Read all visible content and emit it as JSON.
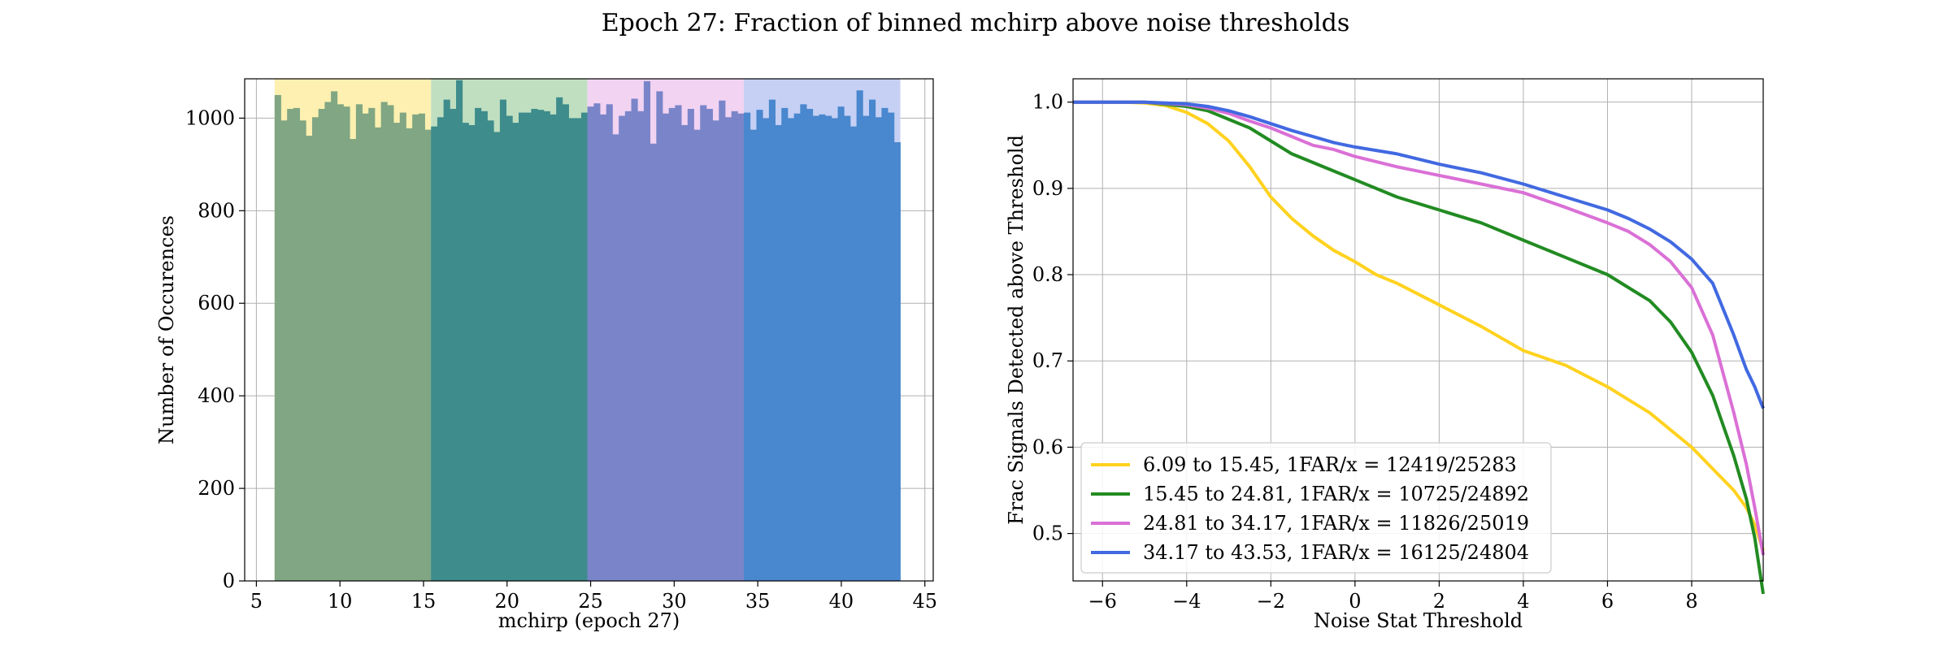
{
  "title": "Epoch 27: Fraction of binned mchirp above noise thresholds",
  "chart_data": [
    {
      "type": "bar",
      "subtype": "histogram",
      "xlabel": "mchirp (epoch 27)",
      "ylabel": "Number of Occurences",
      "xlim": [
        4.3,
        45.5
      ],
      "ylim": [
        0,
        1085
      ],
      "xticks": [
        5,
        10,
        15,
        20,
        25,
        30,
        35,
        40,
        45
      ],
      "yticks": [
        0,
        200,
        400,
        600,
        800,
        1000
      ],
      "grid": true,
      "bin_edges_range": [
        6.09,
        43.53
      ],
      "bin_count": 100,
      "counts": [
        1050,
        995,
        1020,
        1022,
        995,
        962,
        1002,
        1020,
        1035,
        1058,
        1030,
        1025,
        955,
        1030,
        1010,
        1022,
        980,
        1035,
        1028,
        990,
        1012,
        978,
        1008,
        1010,
        975,
        982,
        1002,
        1040,
        1020,
        1082,
        990,
        985,
        1022,
        1015,
        995,
        970,
        1040,
        1005,
        990,
        1012,
        1012,
        1020,
        1018,
        1015,
        1008,
        1045,
        1030,
        1000,
        1000,
        1012,
        1025,
        1032,
        1008,
        1030,
        965,
        1005,
        1015,
        1042,
        1015,
        1080,
        945,
        1058,
        1010,
        1022,
        1028,
        985,
        1020,
        975,
        1028,
        1020,
        995,
        1038,
        1002,
        1015,
        1010,
        1012,
        975,
        1018,
        1000,
        1040,
        985,
        1022,
        1000,
        1010,
        1030,
        1020,
        1005,
        1008,
        1005,
        1000,
        1025,
        1005,
        982,
        1060,
        1005,
        1040,
        1002,
        1022,
        1012,
        948
      ],
      "regions": [
        {
          "from": 6.09,
          "to": 15.45,
          "shade": "#fdf0b0",
          "bar": "#80a683"
        },
        {
          "from": 15.45,
          "to": 24.81,
          "shade": "#c0dfc0",
          "bar": "#3e8c8c"
        },
        {
          "from": 24.81,
          "to": 34.17,
          "shade": "#f2d3f2",
          "bar": "#7a85c9"
        },
        {
          "from": 34.17,
          "to": 43.53,
          "shade": "#c5d0f4",
          "bar": "#4987ce"
        }
      ]
    },
    {
      "type": "line",
      "xlabel": "Noise Stat Threshold",
      "ylabel": "Frac Signals Detected above Threshold",
      "xlim": [
        -6.7,
        9.7
      ],
      "ylim": [
        0.445,
        1.027
      ],
      "xticks": [
        -6,
        -4,
        -2,
        0,
        2,
        4,
        6,
        8
      ],
      "yticks": [
        0.5,
        0.6,
        0.7,
        0.8,
        0.9,
        1.0
      ],
      "grid": true,
      "legend_position": "lower-left",
      "series": [
        {
          "name": "6.09 to 15.45, 1FAR/x = 12419/25283",
          "color": "#ffd21f",
          "x": [
            -6.7,
            -5.5,
            -5,
            -4.5,
            -4,
            -3.5,
            -3,
            -2.5,
            -2,
            -1.5,
            -1,
            -0.5,
            0,
            0.5,
            1,
            2,
            3,
            4,
            5,
            6,
            7,
            8,
            8.5,
            9,
            9.3,
            9.5,
            9.7
          ],
          "y": [
            1.0,
            1.0,
            0.999,
            0.996,
            0.988,
            0.975,
            0.955,
            0.925,
            0.89,
            0.865,
            0.845,
            0.828,
            0.815,
            0.8,
            0.79,
            0.765,
            0.74,
            0.712,
            0.695,
            0.67,
            0.64,
            0.6,
            0.575,
            0.55,
            0.53,
            0.51,
            0.48
          ]
        },
        {
          "name": "15.45 to 24.81, 1FAR/x = 10725/24892",
          "color": "#228b22",
          "x": [
            -6.7,
            -5,
            -4,
            -3.5,
            -3,
            -2.5,
            -2,
            -1.5,
            -1,
            -0.5,
            0,
            1,
            2,
            3,
            4,
            5,
            6,
            6.5,
            7,
            7.5,
            8,
            8.5,
            9,
            9.3,
            9.5,
            9.7
          ],
          "y": [
            1.0,
            1.0,
            0.995,
            0.99,
            0.98,
            0.97,
            0.955,
            0.94,
            0.93,
            0.92,
            0.91,
            0.89,
            0.875,
            0.86,
            0.84,
            0.82,
            0.8,
            0.785,
            0.77,
            0.745,
            0.71,
            0.66,
            0.59,
            0.54,
            0.495,
            0.43
          ]
        },
        {
          "name": "24.81 to 34.17, 1FAR/x = 11826/25019",
          "color": "#da70d6",
          "x": [
            -6.7,
            -5,
            -4,
            -3.5,
            -3,
            -2.5,
            -2,
            -1.5,
            -1,
            -0.5,
            0,
            1,
            2,
            3,
            4,
            5,
            6,
            6.5,
            7,
            7.5,
            8,
            8.5,
            9,
            9.3,
            9.5,
            9.7
          ],
          "y": [
            1.0,
            1.0,
            0.997,
            0.993,
            0.987,
            0.978,
            0.97,
            0.96,
            0.95,
            0.945,
            0.937,
            0.925,
            0.915,
            0.905,
            0.895,
            0.878,
            0.86,
            0.85,
            0.835,
            0.815,
            0.785,
            0.73,
            0.64,
            0.58,
            0.53,
            0.475
          ]
        },
        {
          "name": "34.17 to 43.53, 1FAR/x = 16125/24804",
          "color": "#4169e1",
          "x": [
            -6.7,
            -5,
            -4,
            -3.5,
            -3,
            -2.5,
            -2,
            -1.5,
            -1,
            -0.5,
            0,
            1,
            2,
            3,
            4,
            5,
            6,
            6.5,
            7,
            7.5,
            8,
            8.5,
            9,
            9.3,
            9.5,
            9.7
          ],
          "y": [
            1.0,
            1.0,
            0.998,
            0.995,
            0.99,
            0.983,
            0.975,
            0.967,
            0.96,
            0.953,
            0.948,
            0.94,
            0.928,
            0.918,
            0.905,
            0.89,
            0.875,
            0.865,
            0.853,
            0.838,
            0.818,
            0.79,
            0.73,
            0.69,
            0.67,
            0.645
          ]
        }
      ]
    }
  ]
}
